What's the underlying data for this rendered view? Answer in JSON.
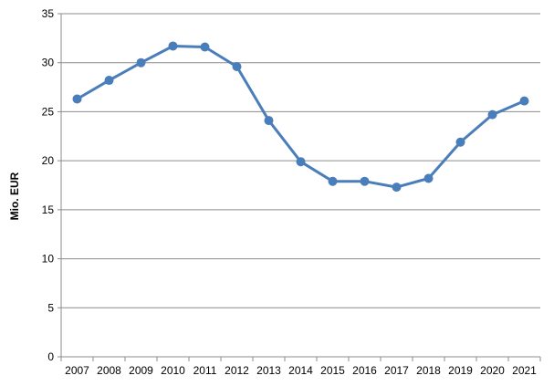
{
  "chart_data": {
    "type": "line",
    "title": "",
    "xlabel": "",
    "ylabel": "Mio. EUR",
    "categories": [
      "2007",
      "2008",
      "2009",
      "2010",
      "2011",
      "2012",
      "2013",
      "2014",
      "2015",
      "2016",
      "2017",
      "2018",
      "2019",
      "2020",
      "2021"
    ],
    "series": [
      {
        "values": [
          26.3,
          28.2,
          30.0,
          31.7,
          31.6,
          29.6,
          24.1,
          19.9,
          17.9,
          17.9,
          17.3,
          18.2,
          21.9,
          24.7,
          26.1
        ]
      }
    ],
    "yticks": [
      0,
      5,
      10,
      15,
      20,
      25,
      30,
      35
    ],
    "ylim": [
      0,
      35
    ],
    "grid": true,
    "legend": "none",
    "colors": {
      "line": "#4A7EBB",
      "marker": "#4A7EBB",
      "grid": "#8C8C8C",
      "axis": "#8C8C8C"
    }
  }
}
